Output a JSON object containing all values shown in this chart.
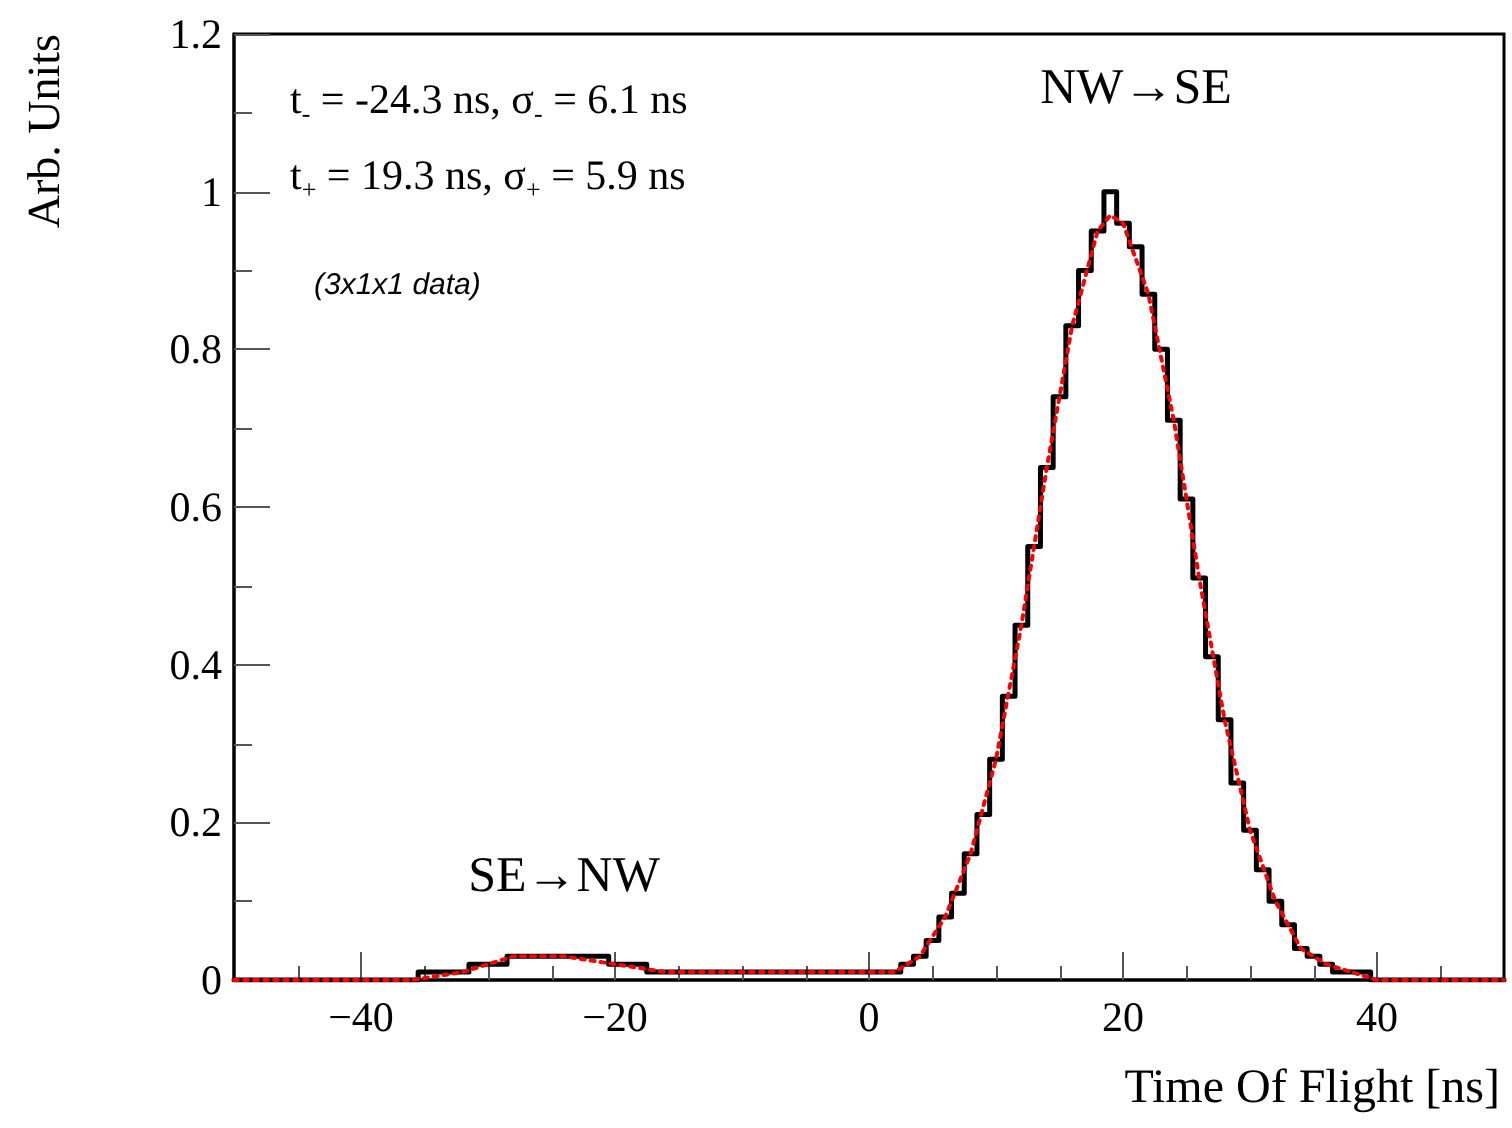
{
  "chart_data": {
    "type": "step",
    "xlabel": "Time Of Flight [ns]",
    "ylabel": "Arb. Units",
    "xlim": [
      -50,
      50
    ],
    "xticks": [
      -40,
      -20,
      0,
      20,
      40
    ],
    "ylim": [
      0,
      1.2
    ],
    "yticks": [
      0,
      0.2,
      0.4,
      0.6,
      0.8,
      1,
      1.2
    ],
    "marker": "none",
    "x": [
      -50,
      -49,
      -48,
      -47,
      -46,
      -45,
      -44,
      -43,
      -42,
      -41,
      -40,
      -39,
      -38,
      -37,
      -36,
      -35,
      -34,
      -33,
      -32,
      -31,
      -30,
      -29,
      -28,
      -27,
      -26,
      -25,
      -24,
      -23,
      -22,
      -21,
      -20,
      -19,
      -18,
      -17,
      -16,
      -15,
      -14,
      -13,
      -12,
      -11,
      -10,
      -9,
      -8,
      -7,
      -6,
      -5,
      -4,
      -3,
      -2,
      -1,
      0,
      1,
      2,
      3,
      4,
      5,
      6,
      7,
      8,
      9,
      10,
      11,
      12,
      13,
      14,
      15,
      16,
      17,
      18,
      19,
      20,
      21,
      22,
      23,
      24,
      25,
      26,
      27,
      28,
      29,
      30,
      31,
      32,
      33,
      34,
      35,
      36,
      37,
      38,
      39,
      40,
      41,
      42,
      43,
      44,
      45,
      46,
      47,
      48,
      49,
      50
    ],
    "series": [
      {
        "color": "#000000",
        "line_style": "solid",
        "values": [
          0,
          0,
          0,
          0,
          0,
          0,
          0,
          0,
          0,
          0,
          0,
          0,
          0,
          0,
          0,
          0.01,
          0.01,
          0.01,
          0.01,
          0.02,
          0.02,
          0.02,
          0.03,
          0.03,
          0.03,
          0.03,
          0.03,
          0.03,
          0.03,
          0.03,
          0.02,
          0.02,
          0.02,
          0.01,
          0.01,
          0.01,
          0.01,
          0.01,
          0.01,
          0.01,
          0.01,
          0.01,
          0.01,
          0.01,
          0.01,
          0.01,
          0.01,
          0.01,
          0.01,
          0.01,
          0.01,
          0.01,
          0.01,
          0.02,
          0.03,
          0.05,
          0.08,
          0.11,
          0.16,
          0.21,
          0.28,
          0.36,
          0.45,
          0.55,
          0.65,
          0.74,
          0.83,
          0.9,
          0.95,
          1.0,
          0.96,
          0.93,
          0.87,
          0.8,
          0.71,
          0.61,
          0.51,
          0.41,
          0.33,
          0.25,
          0.19,
          0.14,
          0.1,
          0.07,
          0.04,
          0.03,
          0.02,
          0.01,
          0.01,
          0.01,
          0,
          0,
          0,
          0,
          0,
          0,
          0,
          0,
          0,
          0,
          0
        ]
      },
      {
        "type": "line",
        "color": "#ff0000",
        "line_style": "dotted",
        "x": [
          -50,
          -40,
          -36,
          -32,
          -28,
          -24,
          -20,
          -16,
          -12,
          -8,
          -4,
          0,
          2,
          4,
          6,
          8,
          10,
          12,
          14,
          16,
          18,
          19,
          20,
          22,
          24,
          26,
          28,
          30,
          32,
          34,
          36,
          38,
          40,
          44,
          50
        ],
        "values": [
          0,
          0,
          0,
          0.01,
          0.03,
          0.03,
          0.02,
          0.01,
          0.01,
          0.01,
          0.01,
          0.01,
          0.01,
          0.03,
          0.08,
          0.16,
          0.28,
          0.45,
          0.65,
          0.83,
          0.95,
          0.97,
          0.96,
          0.87,
          0.71,
          0.51,
          0.33,
          0.19,
          0.1,
          0.04,
          0.02,
          0.01,
          0,
          0,
          0
        ]
      }
    ],
    "annotations": [
      "t$_{-}$ = -24.3 ns, σ$_{-}$ = 6.1 ns",
      "t$_{+}$ = 19.3 ns, σ$_{+}$ = 5.9 ns",
      "(3x1x1 data)",
      "NW→SE",
      "SE→NW"
    ]
  }
}
